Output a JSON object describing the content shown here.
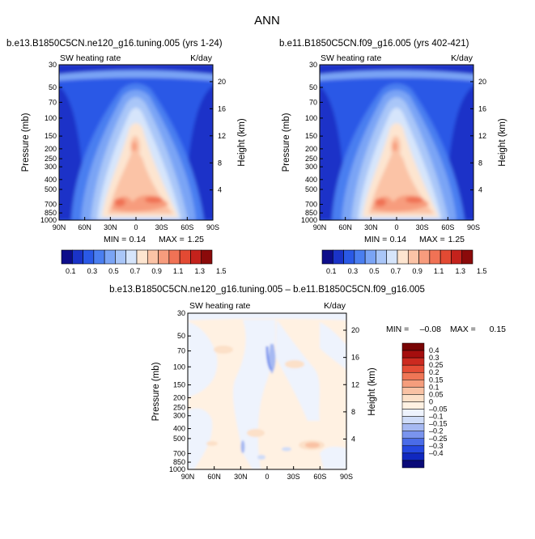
{
  "page": {
    "title": "ANN"
  },
  "colors": {
    "abs_scale": [
      "#0d0d8a",
      "#1a33c8",
      "#2a59e6",
      "#4a7ef0",
      "#7aa4f5",
      "#a9c6f8",
      "#d6e5fb",
      "#fde5d0",
      "#fbc3a6",
      "#f79c7d",
      "#f07255",
      "#e34a33",
      "#c4221c",
      "#8b0a0a"
    ],
    "diff_scale": [
      "#0a0a78",
      "#1028c0",
      "#2548e0",
      "#4a6ce8",
      "#7a94ee",
      "#a6b9f2",
      "#cfdcf8",
      "#eef3fd",
      "#fff1e2",
      "#fce0c8",
      "#f9c2a4",
      "#f59d7c",
      "#ef7656",
      "#e54d36",
      "#cc2a20",
      "#a50e0e",
      "#780404"
    ]
  },
  "chart_data": [
    {
      "type": "heatmap",
      "id": "left",
      "title": "b.e13.B1850C5CN.ne120_g16.tuning.005 (yrs 1-24)",
      "field_label": "SW heating rate",
      "units": "K/day",
      "xlabel": "",
      "ylabel": "Pressure (mb)",
      "y2label": "Height (km)",
      "x_ticks": [
        "90N",
        "60N",
        "30N",
        "0",
        "30S",
        "60S",
        "90S"
      ],
      "y_ticks": [
        "30",
        "50",
        "70",
        "100",
        "150",
        "200",
        "250",
        "300",
        "400",
        "500",
        "700",
        "850",
        "1000"
      ],
      "y2_ticks": [
        "20",
        "16",
        "12",
        "8",
        "4"
      ],
      "min_label": "MIN =",
      "min_value": "0.14",
      "max_label": "MAX =",
      "max_value": "1.25",
      "colorbar_labels": [
        "0.1",
        "0.3",
        "0.5",
        "0.7",
        "0.9",
        "1.1",
        "1.3",
        "1.5"
      ]
    },
    {
      "type": "heatmap",
      "id": "right",
      "title": "b.e11.B1850C5CN.f09_g16.005 (yrs 402-421)",
      "field_label": "SW heating rate",
      "units": "K/day",
      "xlabel": "",
      "ylabel": "Pressure (mb)",
      "y2label": "Height (km)",
      "x_ticks": [
        "90N",
        "60N",
        "30N",
        "0",
        "30S",
        "60S",
        "90S"
      ],
      "y_ticks": [
        "30",
        "50",
        "70",
        "100",
        "150",
        "200",
        "250",
        "300",
        "400",
        "500",
        "700",
        "850",
        "1000"
      ],
      "y2_ticks": [
        "20",
        "16",
        "12",
        "8",
        "4"
      ],
      "min_label": "MIN =",
      "min_value": "0.14",
      "max_label": "MAX =",
      "max_value": "1.25",
      "colorbar_labels": [
        "0.1",
        "0.3",
        "0.5",
        "0.7",
        "0.9",
        "1.1",
        "1.3",
        "1.5"
      ]
    },
    {
      "type": "heatmap",
      "id": "diff",
      "title": "b.e13.B1850C5CN.ne120_g16.tuning.005 – b.e11.B1850C5CN.f09_g16.005",
      "field_label": "SW heating rate",
      "units": "K/day",
      "xlabel": "",
      "ylabel": "Pressure (mb)",
      "y2label": "Height (km)",
      "x_ticks": [
        "90N",
        "60N",
        "30N",
        "0",
        "30S",
        "60S",
        "90S"
      ],
      "y_ticks": [
        "30",
        "50",
        "70",
        "100",
        "150",
        "200",
        "250",
        "300",
        "400",
        "500",
        "700",
        "850",
        "1000"
      ],
      "y2_ticks": [
        "20",
        "16",
        "12",
        "8",
        "4"
      ],
      "min_label": "MIN =",
      "min_value": "–0.08",
      "max_label": "MAX =",
      "max_value": "0.15",
      "colorbar_labels": [
        "0.4",
        "0.3",
        "0.25",
        "0.2",
        "0.15",
        "0.1",
        "0.05",
        "0",
        "–0.05",
        "–0.1",
        "–0.15",
        "–0.2",
        "–0.25",
        "–0.3",
        "–0.4"
      ]
    }
  ]
}
